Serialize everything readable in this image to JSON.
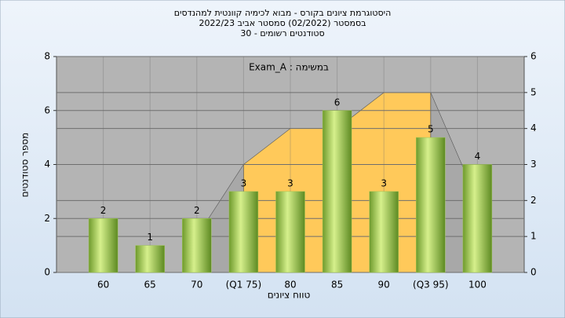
{
  "chart_data": {
    "type": "bar",
    "title": [
      "היסטוגרמת ציונים בקורס - מבוא לכימיה קוונטית למהנדסים",
      "בסמסטר (02/2022) סמסטר אביב 2022/23",
      "סטודנטים רשומים - 30"
    ],
    "annotation": "במשימה : Exam_A",
    "xlabel": "טווח ציונים",
    "ylabel": "מספר סטודנטים",
    "categories": [
      "60",
      "65",
      "70",
      "(Q1 75)",
      "80",
      "85",
      "90",
      "(Q3 95)",
      "100"
    ],
    "series": [
      {
        "type": "area",
        "axis": "y2",
        "color": "#a8a8a8",
        "values": [
          null,
          null,
          1,
          3,
          null,
          null,
          null,
          5,
          2
        ]
      },
      {
        "type": "area",
        "axis": "y2",
        "color": "#ffc95a",
        "values": [
          null,
          null,
          null,
          3,
          4,
          4,
          5,
          5,
          null
        ]
      },
      {
        "type": "bar",
        "color": "#9cc450",
        "values": [
          2,
          1,
          2,
          3,
          3,
          6,
          3,
          5,
          4
        ]
      }
    ],
    "ylim": [
      0,
      8
    ],
    "yticks": [
      0,
      2,
      4,
      6,
      8
    ],
    "y2lim": [
      0,
      6
    ],
    "y2ticks": [
      0,
      1,
      2,
      3,
      4,
      5,
      6
    ],
    "grid": true
  }
}
